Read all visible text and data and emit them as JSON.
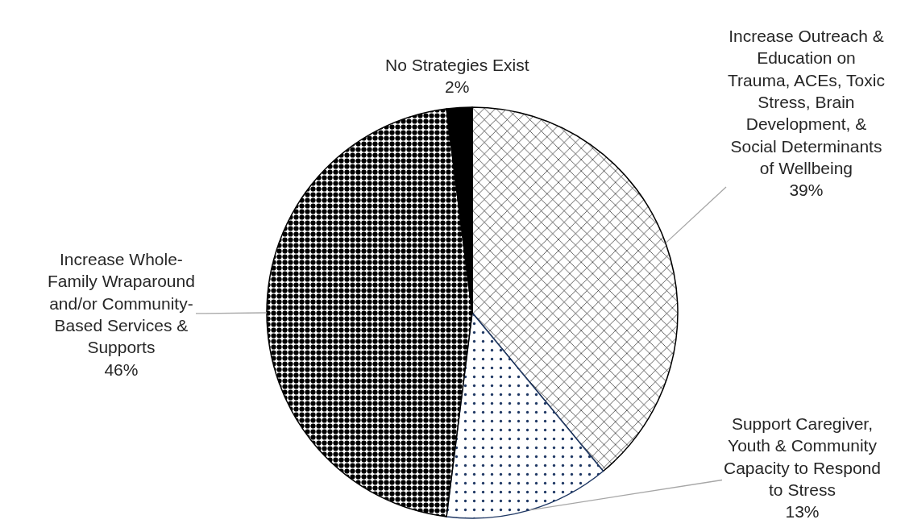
{
  "chart_data": {
    "type": "pie",
    "categories": [
      "Increase Outreach & Education on Trauma, ACEs, Toxic Stress, Brain Development, & Social Determinants of Wellbeing",
      "Support Caregiver, Youth & Community Capacity to Respond to Stress",
      "Increase Whole-Family Wraparound and/or Community-Based Services & Supports",
      "No Strategies Exist"
    ],
    "values": [
      39,
      13,
      46,
      2
    ],
    "value_labels": [
      "39%",
      "13%",
      "46%",
      "2%"
    ],
    "colors": [
      "#000000",
      "#1f3864",
      "#000000",
      "#000000"
    ]
  }
}
